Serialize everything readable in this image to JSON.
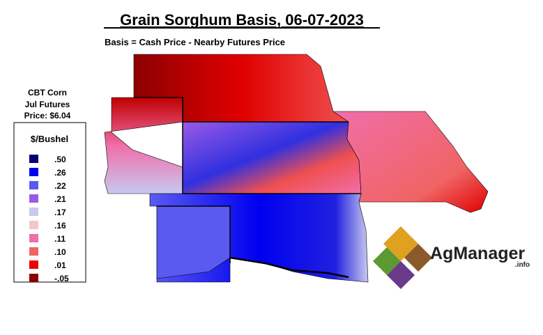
{
  "header": {
    "title": "Grain Sorghum Basis, 06-07-2023",
    "subtitle": "Basis = Cash Price - Nearby Futures Price"
  },
  "futures_note": [
    "CBT Corn",
    "Jul Futures",
    "Price: $6.04"
  ],
  "legend": {
    "title": "$/Bushel",
    "items": [
      {
        "label": ".50",
        "color": "#00006e"
      },
      {
        "label": ".26",
        "color": "#0000f0"
      },
      {
        "label": ".22",
        "color": "#5a5af0"
      },
      {
        "label": ".21",
        "color": "#9a5ae6"
      },
      {
        "label": ".17",
        "color": "#c8c8f0"
      },
      {
        "label": ".16",
        "color": "#f0c8c8"
      },
      {
        "label": ".11",
        "color": "#f06eaa"
      },
      {
        "label": ".10",
        "color": "#f06464"
      },
      {
        "label": ".01",
        "color": "#f00000"
      },
      {
        "label": "-.05",
        "color": "#8c0000"
      }
    ]
  },
  "logo": {
    "name": "AgManager",
    "suffix": ".info"
  }
}
